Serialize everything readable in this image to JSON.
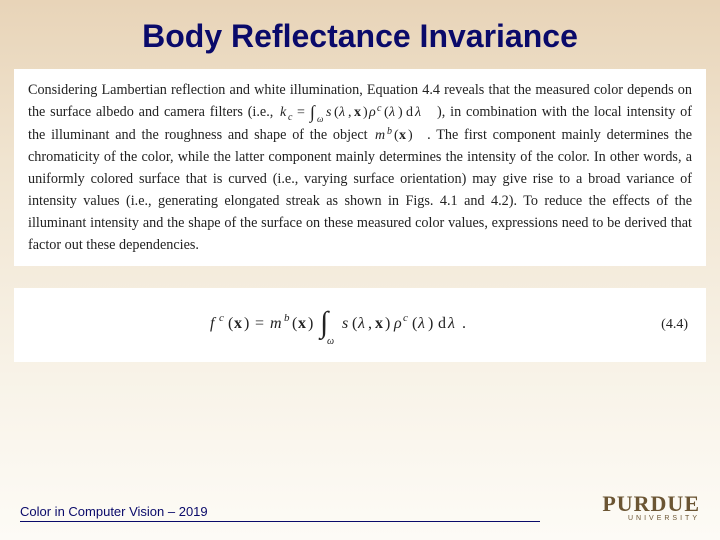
{
  "title": "Body Reflectance Invariance",
  "body": {
    "pre_kc": "Considering Lambertian reflection and white illumination, Equation 4.4 reveals that the measured color depends on the surface albedo and camera filters (i.e., ",
    "kc_text": "k_c = ∫_ω s(λ, x) ρ^c(λ) dλ",
    "mid1": "), in combination with the local intensity of the illuminant and the roughness and shape of the object ",
    "mb_text": "m^b(x)",
    "mid2": ". The first component mainly determines the chromaticity of the color, while the latter component mainly determines the intensity of the color. In other words, a uniformly colored surface that is curved (i.e., varying surface orientation) may give rise to a broad variance of intensity values (i.e., generating elongated streak as shown in Figs. 4.1 and 4.2). To reduce the effects of the illuminant intensity and the shape of the surface on these measured color values, expressions need to be derived that factor out these dependencies."
  },
  "equation": {
    "text": "f^c(x) = m^b(x) ∫_ω s(λ, x) ρ^c(λ) dλ .",
    "number": "(4.4)"
  },
  "footer": {
    "left": "Color in Computer Vision – 2019",
    "logo_main": "PURDUE",
    "logo_sub": "UNIVERSITY"
  },
  "styling": {
    "title_color": "#0a0a6a",
    "title_fontsize": 32,
    "body_fontsize": 14.2,
    "body_line_height": 1.55,
    "body_color": "#222222",
    "footer_color": "#0a0a6a",
    "footer_fontsize": 13,
    "panel_bg": "#ffffff",
    "bg_gradient_top": "#e8d4b8",
    "bg_gradient_bottom": "#fdfbf6",
    "logo_color": "#6b5533",
    "equation_fontsize": 16
  }
}
